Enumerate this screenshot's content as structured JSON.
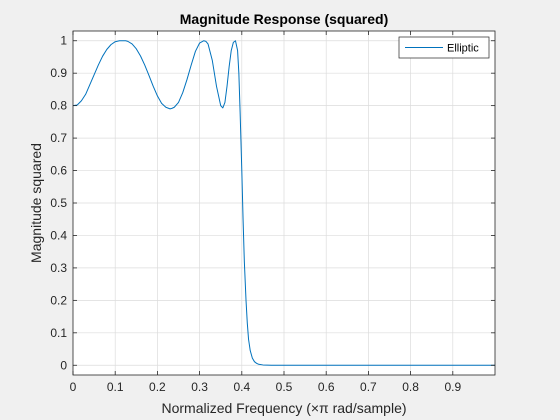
{
  "chart_data": {
    "type": "line",
    "title": "Magnitude Response (squared)",
    "xlabel": "Normalized Frequency (×π rad/sample)",
    "ylabel": "Magnitude squared",
    "xlim": [
      0,
      1
    ],
    "ylim": [
      -0.03,
      1.03
    ],
    "xticks": [
      0,
      0.1,
      0.2,
      0.3,
      0.4,
      0.5,
      0.6,
      0.7,
      0.8,
      0.9
    ],
    "xtick_labels": [
      "0",
      "0.1",
      "0.2",
      "0.3",
      "0.4",
      "0.5",
      "0.6",
      "0.7",
      "0.8",
      "0.9"
    ],
    "yticks": [
      0,
      0.1,
      0.2,
      0.3,
      0.4,
      0.5,
      0.6,
      0.7,
      0.8,
      0.9,
      1
    ],
    "ytick_labels": [
      "0",
      "0.1",
      "0.2",
      "0.3",
      "0.4",
      "0.5",
      "0.6",
      "0.7",
      "0.8",
      "0.9",
      "1"
    ],
    "grid": true,
    "legend_position": "top-right",
    "series": [
      {
        "name": "Elliptic",
        "color": "#0072BD",
        "x": [
          0,
          0.01,
          0.02,
          0.03,
          0.04,
          0.05,
          0.06,
          0.07,
          0.08,
          0.09,
          0.1,
          0.11,
          0.12,
          0.125,
          0.13,
          0.14,
          0.15,
          0.16,
          0.17,
          0.18,
          0.19,
          0.2,
          0.21,
          0.22,
          0.23,
          0.235,
          0.24,
          0.25,
          0.26,
          0.27,
          0.28,
          0.29,
          0.3,
          0.31,
          0.315,
          0.32,
          0.33,
          0.34,
          0.35,
          0.355,
          0.36,
          0.365,
          0.37,
          0.375,
          0.38,
          0.385,
          0.39,
          0.393,
          0.396,
          0.4,
          0.403,
          0.406,
          0.41,
          0.413,
          0.416,
          0.42,
          0.425,
          0.43,
          0.435,
          0.44,
          0.45,
          0.46,
          0.47,
          0.48,
          0.5,
          0.6,
          0.7,
          0.8,
          0.9,
          1.0
        ],
        "y": [
          0.8,
          0.802,
          0.815,
          0.835,
          0.865,
          0.895,
          0.925,
          0.952,
          0.973,
          0.988,
          0.997,
          1.0,
          1.0,
          1.0,
          0.998,
          0.99,
          0.975,
          0.953,
          0.925,
          0.893,
          0.86,
          0.83,
          0.807,
          0.795,
          0.79,
          0.792,
          0.795,
          0.81,
          0.84,
          0.88,
          0.925,
          0.967,
          0.993,
          1.0,
          0.998,
          0.99,
          0.94,
          0.86,
          0.8,
          0.793,
          0.81,
          0.86,
          0.92,
          0.97,
          0.995,
          1.0,
          0.97,
          0.9,
          0.78,
          0.6,
          0.45,
          0.32,
          0.2,
          0.13,
          0.08,
          0.045,
          0.022,
          0.011,
          0.006,
          0.003,
          0.001,
          0.0005,
          0.0002,
          0.0001,
          0,
          0,
          0,
          0,
          0,
          0
        ]
      }
    ]
  }
}
